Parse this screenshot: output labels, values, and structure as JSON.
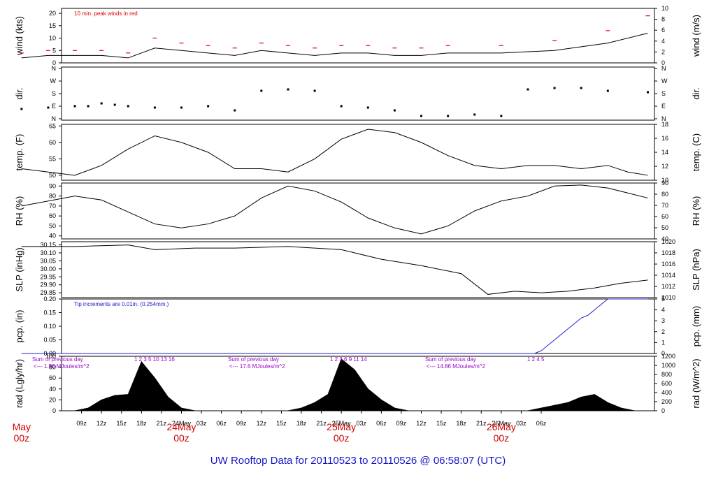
{
  "title": "UW Rooftop Data for 20110523  to  20110526 @ 06:58:07  (UTC)",
  "x_ticks": [
    "09z",
    "12z",
    "15z",
    "18z",
    "21z",
    "24May",
    "03z",
    "06z",
    "09z",
    "12z",
    "15z",
    "18z",
    "21z",
    "25May",
    "03z",
    "06z",
    "09z",
    "12z",
    "15z",
    "18z",
    "21z",
    "26May",
    "03z",
    "06z"
  ],
  "day_labels": [
    {
      "name": "May",
      "sub": "00z"
    },
    {
      "name": "24May",
      "sub": "00z"
    },
    {
      "name": "25May",
      "sub": "00z"
    },
    {
      "name": "26May",
      "sub": "00z"
    }
  ],
  "chart_data": [
    {
      "type": "line",
      "name": "wind",
      "ylabel": "wind (kts)",
      "ylabel_right": "wind (m/s)",
      "ylim": [
        0,
        22
      ],
      "yticks": [
        0,
        5,
        10,
        15,
        20
      ],
      "yticks_right": [
        0,
        2,
        4,
        6,
        8,
        10
      ],
      "annotation": "10 min. peak winds in red",
      "x_hours": [
        0,
        4,
        8,
        12,
        16,
        20,
        24,
        28,
        32,
        36,
        40,
        44,
        48,
        52,
        56,
        60,
        64,
        72,
        80,
        88,
        94
      ],
      "values": [
        2,
        3,
        3,
        3,
        2,
        6,
        5,
        4,
        3,
        5,
        4,
        3,
        4,
        4,
        3,
        3,
        4,
        4,
        5,
        8,
        12
      ],
      "peak_values": [
        4,
        5,
        5,
        5,
        4,
        10,
        8,
        7,
        6,
        8,
        7,
        6,
        7,
        7,
        6,
        6,
        7,
        7,
        9,
        13,
        19
      ]
    },
    {
      "type": "scatter",
      "name": "dir",
      "ylabel": "dir.",
      "yticks": [
        "N",
        "E",
        "S",
        "W",
        "N"
      ],
      "yticks_right": [
        "N",
        "E",
        "S",
        "W",
        "N"
      ],
      "x_hours": [
        0,
        4,
        8,
        10,
        12,
        14,
        16,
        20,
        24,
        28,
        32,
        36,
        40,
        44,
        48,
        52,
        56,
        60,
        64,
        68,
        72,
        76,
        80,
        84,
        88,
        94
      ],
      "values": [
        70,
        80,
        90,
        90,
        110,
        100,
        90,
        80,
        80,
        90,
        60,
        200,
        210,
        200,
        90,
        80,
        60,
        20,
        20,
        30,
        20,
        210,
        220,
        220,
        200,
        190
      ]
    },
    {
      "type": "line",
      "name": "temp",
      "ylabel": "temp. (F)",
      "ylabel_right": "temp. (C)",
      "ylim": [
        48.5,
        65.5
      ],
      "yticks": [
        50,
        55,
        60,
        65
      ],
      "yticks_right": [
        10,
        12,
        14,
        16,
        18
      ],
      "x_hours": [
        0,
        4,
        8,
        12,
        16,
        20,
        24,
        28,
        32,
        36,
        40,
        44,
        48,
        52,
        56,
        60,
        64,
        68,
        72,
        76,
        80,
        84,
        88,
        91,
        94
      ],
      "values": [
        52,
        51,
        50,
        53,
        58,
        62,
        60,
        57,
        52,
        52,
        51,
        55,
        61,
        64,
        63,
        60,
        56,
        53,
        52,
        53,
        53,
        52,
        53,
        51,
        50
      ]
    },
    {
      "type": "line",
      "name": "rh",
      "ylabel": "RH (%)",
      "ylabel_right": "RH (%)",
      "ylim": [
        37,
        93
      ],
      "yticks": [
        40,
        50,
        60,
        70,
        80,
        90
      ],
      "yticks_right": [
        40,
        50,
        60,
        70,
        80,
        90
      ],
      "x_hours": [
        0,
        4,
        8,
        12,
        16,
        20,
        24,
        28,
        32,
        36,
        40,
        44,
        48,
        52,
        56,
        60,
        64,
        68,
        72,
        76,
        80,
        84,
        88,
        94
      ],
      "values": [
        70,
        75,
        80,
        76,
        64,
        52,
        48,
        52,
        60,
        78,
        90,
        85,
        74,
        58,
        48,
        42,
        50,
        65,
        75,
        80,
        90,
        91,
        88,
        78
      ]
    },
    {
      "type": "line",
      "name": "slp",
      "ylabel": "SLP (inHg)",
      "ylabel_right": "SLP (hPa)",
      "ylim": [
        29.82,
        30.17
      ],
      "yticks": [
        29.85,
        29.9,
        29.95,
        30.0,
        30.05,
        30.1,
        30.15
      ],
      "yticks_right": [
        1010,
        1012,
        1014,
        1016,
        1018,
        1020
      ],
      "x_hours": [
        0,
        8,
        16,
        20,
        26,
        32,
        40,
        48,
        54,
        60,
        66,
        70,
        74,
        78,
        82,
        86,
        90,
        94
      ],
      "values": [
        30.14,
        30.14,
        30.15,
        30.12,
        30.13,
        30.13,
        30.14,
        30.12,
        30.06,
        30.02,
        29.97,
        29.84,
        29.86,
        29.85,
        29.86,
        29.88,
        29.91,
        29.93
      ],
      "annotation": ""
    },
    {
      "type": "line",
      "name": "pcp",
      "ylabel": "pcp. (in)",
      "ylabel_right": "pcp. (mm)",
      "ylim": [
        0,
        0.2
      ],
      "yticks": [
        0.0,
        0.05,
        0.1,
        0.15,
        0.2
      ],
      "yticks_right": [
        0,
        1,
        2,
        3,
        4,
        5
      ],
      "annotation": "Tip increments are 0.01in. (0.254mm.)",
      "x_hours": [
        0,
        77,
        78,
        79,
        80,
        81,
        82,
        83,
        84,
        85,
        86,
        87,
        88,
        94
      ],
      "values": [
        0,
        0,
        0.01,
        0.03,
        0.05,
        0.07,
        0.09,
        0.11,
        0.13,
        0.14,
        0.16,
        0.18,
        0.2,
        0.2
      ]
    },
    {
      "type": "area",
      "name": "rad",
      "ylabel": "rad (Lgly/hr)",
      "ylabel_right": "rad (W/m^2)",
      "ylim": [
        0,
        100
      ],
      "yticks": [
        0,
        20,
        40,
        60,
        80,
        100
      ],
      "yticks_right": [
        0,
        200,
        400,
        600,
        800,
        1000,
        1200
      ],
      "x_hours": [
        6,
        8,
        10,
        12,
        14,
        16,
        18,
        20,
        22,
        24,
        26,
        28,
        30,
        32,
        34,
        36,
        38,
        40,
        42,
        44,
        46,
        48,
        50,
        52,
        54,
        56,
        58,
        60,
        62,
        64,
        66,
        68,
        70,
        72,
        74,
        76,
        78,
        80,
        82,
        84,
        86,
        88,
        90,
        92,
        94
      ],
      "values": [
        0,
        0,
        5,
        20,
        28,
        30,
        90,
        60,
        25,
        5,
        0,
        0,
        0,
        0,
        0,
        0,
        0,
        0,
        5,
        15,
        30,
        95,
        75,
        40,
        20,
        5,
        0,
        0,
        0,
        0,
        0,
        0,
        0,
        0,
        0,
        0,
        5,
        10,
        15,
        25,
        30,
        15,
        5,
        0,
        0
      ],
      "sum_notes": [
        {
          "text": "Sum of previous day",
          "sub": "<--- 1.80 MJoules/m^2",
          "numbers": "1  2  3  5  10  13  16"
        },
        {
          "text": "Sum of previous day",
          "sub": "<--- 17.6 MJoules/m^2",
          "numbers": "1  2  3  6  9  11  14"
        },
        {
          "text": "Sum of previous day",
          "sub": "<--- 14.86 MJoules/m^2",
          "numbers": "1       2       4  5"
        }
      ]
    }
  ]
}
